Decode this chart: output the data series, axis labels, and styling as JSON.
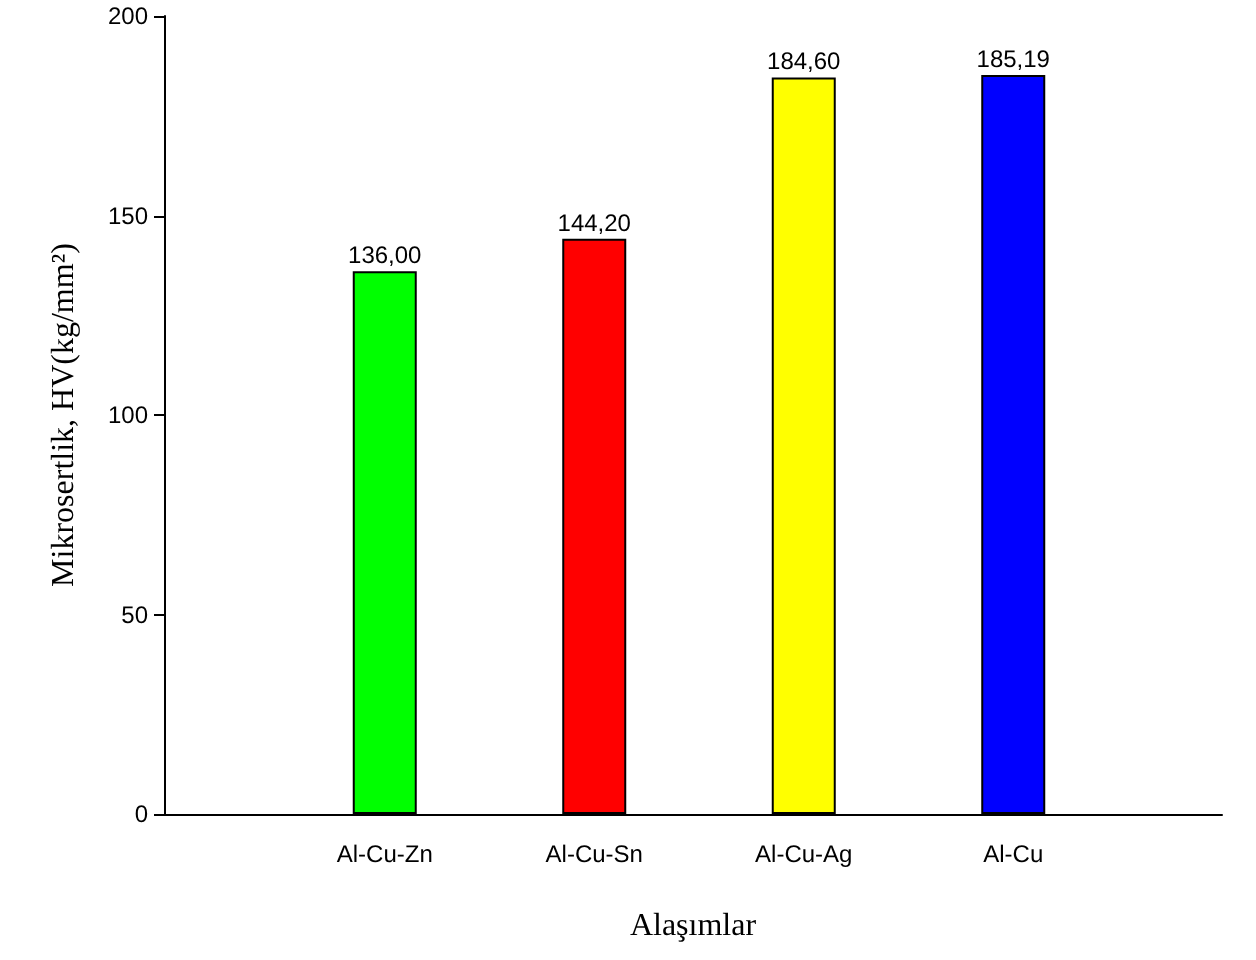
{
  "chart_data": {
    "type": "bar",
    "xlabel": "Alaşımlar",
    "ylabel": "Mikrosertlik, HV(kg/mm²)",
    "categories": [
      "Al-Cu-Zn",
      "Al-Cu-Sn",
      "Al-Cu-Ag",
      "Al-Cu"
    ],
    "values": [
      136.0,
      144.2,
      184.6,
      185.19
    ],
    "colors": [
      "#00ff00",
      "#ff0000",
      "#ffff00",
      "#0000ff"
    ],
    "value_labels": [
      "136,00",
      "144,20",
      "184,60",
      "185,19"
    ],
    "ylim": [
      0,
      200
    ],
    "yticks": [
      0,
      50,
      100,
      150,
      200
    ],
    "grid": false
  }
}
